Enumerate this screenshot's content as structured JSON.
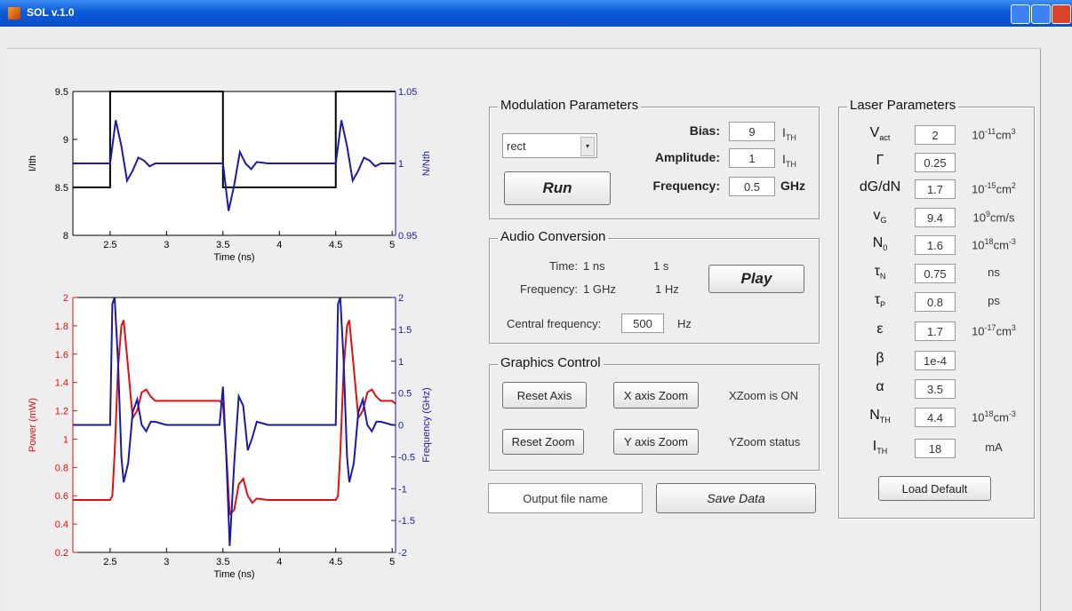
{
  "window": {
    "title": "SOL v.1.0"
  },
  "plots": [
    {
      "type": "line",
      "xlabel": "Time (ns)",
      "ylabel": "I/Ith",
      "y2label": "N/Nth",
      "x": [
        2.17,
        2.5,
        2.5,
        2.55,
        2.6,
        2.65,
        2.7,
        2.75,
        2.8,
        2.85,
        2.9,
        3.0,
        3.5,
        3.5,
        3.55,
        3.6,
        3.65,
        3.7,
        3.75,
        3.8,
        3.9,
        4.5,
        4.5,
        4.55,
        4.6,
        4.65,
        4.7,
        4.75,
        4.8,
        4.85,
        4.9,
        5.0,
        5.03
      ],
      "xlim": [
        2.17,
        5.03
      ],
      "xticks": [
        2.5,
        3,
        3.5,
        4,
        4.5,
        5
      ],
      "ylim": [
        8,
        9.5
      ],
      "yticks": [
        8,
        8.5,
        9,
        9.5
      ],
      "y2lim": [
        0.95,
        1.05
      ],
      "y2ticks": [
        0.95,
        1,
        1.05
      ],
      "series": [
        {
          "color": "#000000",
          "values": [
            8.5,
            8.5,
            9.5,
            9.5,
            9.5,
            9.5,
            9.5,
            9.5,
            9.5,
            9.5,
            9.5,
            9.5,
            9.5,
            8.5,
            8.5,
            8.5,
            8.5,
            8.5,
            8.5,
            8.5,
            8.5,
            8.5,
            9.5,
            9.5,
            9.5,
            9.5,
            9.5,
            9.5,
            9.5,
            9.5,
            9.5,
            9.5,
            9.5
          ]
        },
        {
          "color": "#1a1aa8",
          "axis": "y2",
          "values": [
            1,
            1,
            1,
            1.03,
            1.012,
            0.988,
            0.995,
            1.004,
            1.002,
            0.998,
            1.0,
            1.0,
            1.0,
            1.0,
            0.967,
            0.985,
            1.008,
            1.0,
            0.996,
            1.001,
            1.0,
            1.0,
            1.0,
            1.03,
            1.012,
            0.988,
            0.995,
            1.004,
            1.002,
            0.998,
            1.0,
            1.0,
            1.0
          ]
        }
      ]
    },
    {
      "type": "line",
      "xlabel": "Time (ns)",
      "ylabel": "Power (mW)",
      "y2label": "Frequency (GHz)",
      "x": [
        2.17,
        2.5,
        2.52,
        2.54,
        2.57,
        2.6,
        2.62,
        2.66,
        2.7,
        2.74,
        2.78,
        2.82,
        2.86,
        2.9,
        3.0,
        3.47,
        3.5,
        3.53,
        3.56,
        3.6,
        3.64,
        3.68,
        3.72,
        3.76,
        3.8,
        3.9,
        4.5,
        4.52,
        4.54,
        4.57,
        4.6,
        4.62,
        4.66,
        4.7,
        4.74,
        4.78,
        4.82,
        4.86,
        4.9,
        5.0,
        5.03
      ],
      "xlim": [
        2.17,
        5.03
      ],
      "xticks": [
        2.5,
        3,
        3.5,
        4,
        4.5,
        5
      ],
      "ylim": [
        0.2,
        2
      ],
      "yticks": [
        0.2,
        0.4,
        0.6,
        0.8,
        1,
        1.2,
        1.4,
        1.6,
        1.8,
        2
      ],
      "y2lim": [
        -2,
        2
      ],
      "y2ticks": [
        -2,
        -1.5,
        -1,
        -0.5,
        0,
        0.5,
        1,
        1.5,
        2
      ],
      "series": [
        {
          "color": "#e01010",
          "values": [
            0.57,
            0.57,
            0.6,
            0.9,
            1.5,
            1.8,
            1.84,
            1.5,
            1.15,
            1.2,
            1.33,
            1.35,
            1.3,
            1.27,
            1.27,
            1.27,
            1.25,
            0.9,
            0.47,
            0.5,
            0.68,
            0.72,
            0.6,
            0.55,
            0.58,
            0.57,
            0.57,
            0.6,
            0.9,
            1.5,
            1.8,
            1.84,
            1.5,
            1.15,
            1.2,
            1.33,
            1.35,
            1.3,
            1.27,
            1.27,
            1.25
          ]
        },
        {
          "color": "#1a1aa8",
          "axis": "y2",
          "values": [
            0,
            0,
            1.9,
            2.0,
            1.0,
            -0.5,
            -0.9,
            -0.6,
            0.2,
            0.4,
            0.0,
            -0.1,
            0.05,
            0.05,
            0.0,
            0.0,
            0.6,
            -0.5,
            -1.9,
            -0.6,
            0.45,
            0.3,
            -0.4,
            -0.2,
            0.05,
            0.0,
            0.0,
            1.9,
            2.0,
            1.0,
            -0.5,
            -0.9,
            -0.6,
            0.2,
            0.4,
            0.0,
            -0.1,
            0.05,
            0.05,
            0.0,
            0.0
          ]
        }
      ]
    }
  ],
  "modulation": {
    "title": "Modulation Parameters",
    "waveform": "rect",
    "run": "Run",
    "bias": {
      "label": "Bias:",
      "value": 9,
      "unit": [
        "I",
        "TH"
      ]
    },
    "amplitude": {
      "label": "Amplitude:",
      "value": 1,
      "unit": [
        "I",
        "TH"
      ]
    },
    "frequency": {
      "label": "Frequency:",
      "value": 0.5,
      "unit": "GHz"
    }
  },
  "audio": {
    "title": "Audio Conversion",
    "time_label": "Time:",
    "time_from": "1 ns",
    "time_to": "1 s",
    "freq_label": "Frequency:",
    "freq_from": "1 GHz",
    "freq_to": "1 Hz",
    "central_label": "Central frequency:",
    "central_value": 500,
    "central_unit": "Hz",
    "play": "Play"
  },
  "graphics": {
    "title": "Graphics Control",
    "reset_axis": "Reset Axis",
    "x_zoom": "X axis Zoom",
    "x_status": "XZoom is ON",
    "reset_zoom": "Reset Zoom",
    "y_zoom": "Y axis Zoom",
    "y_status": "YZoom status"
  },
  "output": {
    "file_name": "Output file name",
    "save": "Save Data"
  },
  "laser": {
    "title": "Laser Parameters",
    "load_default": "Load Default",
    "rows": [
      {
        "label": [
          "V",
          "act"
        ],
        "value": 2,
        "unit": [
          "10",
          "-11",
          "cm",
          "3"
        ]
      },
      {
        "label": [
          "Γ"
        ],
        "value": 0.25
      },
      {
        "label": [
          "dG/dN"
        ],
        "value": 1.7,
        "unit": [
          "10",
          "-15",
          "cm",
          "2"
        ]
      },
      {
        "label": [
          "v",
          "G"
        ],
        "value": 9.4,
        "unit": [
          "10",
          "9",
          "cm/s"
        ]
      },
      {
        "label": [
          "N",
          "0"
        ],
        "value": 1.6,
        "unit": [
          "10",
          "18",
          "cm",
          "-3"
        ]
      },
      {
        "label": [
          "τ",
          "N"
        ],
        "value": 0.75,
        "unit": [
          "ns"
        ]
      },
      {
        "label": [
          "τ",
          "P"
        ],
        "value": 0.8,
        "unit": [
          "ps"
        ]
      },
      {
        "label": [
          "ε"
        ],
        "value": 1.7,
        "unit": [
          "10",
          "-17",
          "cm",
          "3"
        ]
      },
      {
        "label": [
          "β"
        ],
        "value": "1e-4"
      },
      {
        "label": [
          "α"
        ],
        "value": 3.5
      },
      {
        "label": [
          "N",
          "TH"
        ],
        "value": 4.4,
        "unit": [
          "10",
          "18",
          "cm",
          "-3"
        ]
      },
      {
        "label": [
          "I",
          "TH"
        ],
        "value": 18,
        "unit": [
          "mA"
        ]
      }
    ]
  }
}
